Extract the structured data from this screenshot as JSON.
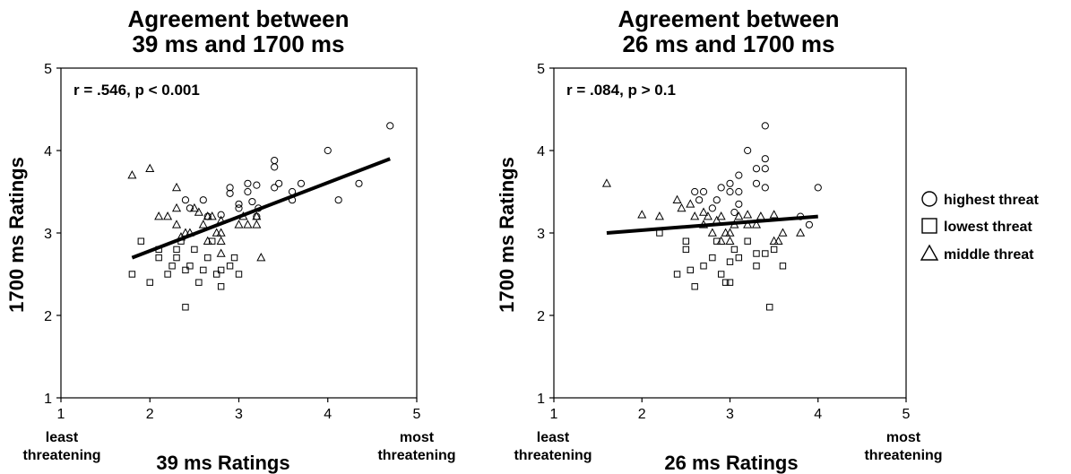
{
  "chart_data": [
    {
      "type": "scatter",
      "title": "Agreement between\n39 ms and 1700 ms",
      "stat": "r = .546, p < 0.001",
      "xlabel": "39 ms Ratings",
      "ylabel": "1700 ms Ratings",
      "x_low_label": "least\nthreatening",
      "x_high_label": "most\nthreatening",
      "xlim": [
        1,
        5
      ],
      "ylim": [
        1,
        5
      ],
      "xticks": [
        "1",
        "2",
        "3",
        "4",
        "5"
      ],
      "yticks": [
        "1",
        "2",
        "3",
        "4",
        "5"
      ],
      "grid": false,
      "regression_line": [
        [
          1.8,
          2.7
        ],
        [
          4.7,
          3.9
        ]
      ],
      "series": [
        {
          "name": "highest threat",
          "marker": "circle",
          "points": [
            [
              2.4,
              3.4
            ],
            [
              2.45,
              3.3
            ],
            [
              2.6,
              3.4
            ],
            [
              2.65,
              3.2
            ],
            [
              2.8,
              3.22
            ],
            [
              2.9,
              3.55
            ],
            [
              2.9,
              3.48
            ],
            [
              3.0,
              3.35
            ],
            [
              3.0,
              3.3
            ],
            [
              3.1,
              3.6
            ],
            [
              3.1,
              3.5
            ],
            [
              3.15,
              3.38
            ],
            [
              3.2,
              3.58
            ],
            [
              3.22,
              3.3
            ],
            [
              3.2,
              3.2
            ],
            [
              3.4,
              3.88
            ],
            [
              3.4,
              3.8
            ],
            [
              3.45,
              3.6
            ],
            [
              3.4,
              3.55
            ],
            [
              3.6,
              3.5
            ],
            [
              3.6,
              3.4
            ],
            [
              3.7,
              3.6
            ],
            [
              4.0,
              4.0
            ],
            [
              4.12,
              3.4
            ],
            [
              4.35,
              3.6
            ],
            [
              4.7,
              4.3
            ]
          ]
        },
        {
          "name": "lowest threat",
          "marker": "square",
          "points": [
            [
              1.8,
              2.5
            ],
            [
              1.9,
              2.9
            ],
            [
              2.0,
              2.4
            ],
            [
              2.1,
              2.7
            ],
            [
              2.1,
              2.8
            ],
            [
              2.2,
              2.5
            ],
            [
              2.25,
              2.6
            ],
            [
              2.3,
              2.7
            ],
            [
              2.3,
              2.8
            ],
            [
              2.35,
              2.9
            ],
            [
              2.4,
              2.1
            ],
            [
              2.4,
              2.55
            ],
            [
              2.45,
              2.6
            ],
            [
              2.5,
              2.8
            ],
            [
              2.55,
              2.4
            ],
            [
              2.6,
              2.55
            ],
            [
              2.65,
              2.7
            ],
            [
              2.7,
              2.9
            ],
            [
              2.75,
              2.5
            ],
            [
              2.8,
              2.55
            ],
            [
              2.8,
              2.35
            ],
            [
              2.9,
              2.6
            ],
            [
              3.0,
              2.5
            ],
            [
              2.95,
              2.7
            ]
          ]
        },
        {
          "name": "middle threat",
          "marker": "triangle",
          "points": [
            [
              1.8,
              3.7
            ],
            [
              2.0,
              3.78
            ],
            [
              2.1,
              3.2
            ],
            [
              2.2,
              3.2
            ],
            [
              2.3,
              3.1
            ],
            [
              2.3,
              3.3
            ],
            [
              2.3,
              3.55
            ],
            [
              2.35,
              2.95
            ],
            [
              2.4,
              3.0
            ],
            [
              2.45,
              3.0
            ],
            [
              2.5,
              3.3
            ],
            [
              2.55,
              3.25
            ],
            [
              2.6,
              3.1
            ],
            [
              2.65,
              3.2
            ],
            [
              2.65,
              2.9
            ],
            [
              2.7,
              3.2
            ],
            [
              2.75,
              3.0
            ],
            [
              2.8,
              3.15
            ],
            [
              2.8,
              3.0
            ],
            [
              2.8,
              2.9
            ],
            [
              2.8,
              2.75
            ],
            [
              3.0,
              3.1
            ],
            [
              3.05,
              3.2
            ],
            [
              3.1,
              3.1
            ],
            [
              3.2,
              3.1
            ],
            [
              3.2,
              3.2
            ],
            [
              3.25,
              2.7
            ]
          ]
        }
      ]
    },
    {
      "type": "scatter",
      "title": "Agreement between\n26 ms and 1700 ms",
      "stat": "r = .084, p > 0.1",
      "xlabel": "26 ms Ratings",
      "ylabel": "1700 ms Ratings",
      "x_low_label": "least\nthreatening",
      "x_high_label": "most\nthreatening",
      "xlim": [
        1,
        5
      ],
      "ylim": [
        1,
        5
      ],
      "xticks": [
        "1",
        "2",
        "3",
        "4",
        "5"
      ],
      "yticks": [
        "1",
        "2",
        "3",
        "4",
        "5"
      ],
      "grid": false,
      "regression_line": [
        [
          1.6,
          3.0
        ],
        [
          4.0,
          3.2
        ]
      ],
      "series": [
        {
          "name": "highest threat",
          "marker": "circle",
          "points": [
            [
              2.6,
              3.5
            ],
            [
              2.65,
              3.4
            ],
            [
              2.7,
              3.5
            ],
            [
              2.8,
              3.3
            ],
            [
              2.85,
              3.4
            ],
            [
              2.9,
              3.55
            ],
            [
              3.0,
              3.6
            ],
            [
              3.0,
              3.5
            ],
            [
              3.05,
              3.25
            ],
            [
              3.1,
              3.7
            ],
            [
              3.1,
              3.5
            ],
            [
              3.1,
              3.35
            ],
            [
              3.2,
              4.0
            ],
            [
              3.3,
              3.6
            ],
            [
              3.3,
              3.78
            ],
            [
              3.4,
              4.3
            ],
            [
              3.4,
              3.9
            ],
            [
              3.4,
              3.78
            ],
            [
              3.4,
              3.55
            ],
            [
              3.8,
              3.2
            ],
            [
              3.9,
              3.1
            ],
            [
              4.0,
              3.55
            ]
          ]
        },
        {
          "name": "lowest threat",
          "marker": "square",
          "points": [
            [
              2.2,
              3.0
            ],
            [
              2.4,
              2.5
            ],
            [
              2.5,
              2.9
            ],
            [
              2.5,
              2.8
            ],
            [
              2.55,
              2.55
            ],
            [
              2.6,
              2.35
            ],
            [
              2.7,
              2.6
            ],
            [
              2.8,
              2.7
            ],
            [
              2.85,
              2.9
            ],
            [
              2.9,
              2.5
            ],
            [
              2.95,
              2.4
            ],
            [
              3.0,
              2.65
            ],
            [
              3.0,
              2.4
            ],
            [
              3.05,
              2.8
            ],
            [
              3.1,
              2.7
            ],
            [
              3.2,
              2.9
            ],
            [
              3.3,
              2.75
            ],
            [
              3.3,
              2.6
            ],
            [
              3.4,
              2.75
            ],
            [
              3.45,
              2.1
            ],
            [
              3.5,
              2.8
            ],
            [
              3.6,
              2.6
            ]
          ]
        },
        {
          "name": "middle threat",
          "marker": "triangle",
          "points": [
            [
              1.6,
              3.6
            ],
            [
              2.0,
              3.22
            ],
            [
              2.2,
              3.2
            ],
            [
              2.4,
              3.4
            ],
            [
              2.45,
              3.3
            ],
            [
              2.55,
              3.35
            ],
            [
              2.6,
              3.2
            ],
            [
              2.7,
              3.25
            ],
            [
              2.7,
              3.1
            ],
            [
              2.75,
              3.2
            ],
            [
              2.8,
              3.0
            ],
            [
              2.85,
              3.15
            ],
            [
              2.9,
              3.2
            ],
            [
              2.9,
              2.9
            ],
            [
              2.95,
              3.0
            ],
            [
              3.0,
              3.0
            ],
            [
              3.0,
              2.9
            ],
            [
              3.05,
              3.1
            ],
            [
              3.1,
              3.2
            ],
            [
              3.2,
              3.22
            ],
            [
              3.2,
              3.1
            ],
            [
              3.3,
              3.1
            ],
            [
              3.35,
              3.2
            ],
            [
              3.5,
              3.22
            ],
            [
              3.5,
              2.9
            ],
            [
              3.6,
              3.0
            ],
            [
              3.55,
              2.9
            ],
            [
              3.8,
              3.0
            ]
          ]
        }
      ]
    }
  ],
  "legend": [
    {
      "marker": "circle",
      "label": "highest threat"
    },
    {
      "marker": "square",
      "label": "lowest threat"
    },
    {
      "marker": "triangle",
      "label": "middle threat"
    }
  ]
}
